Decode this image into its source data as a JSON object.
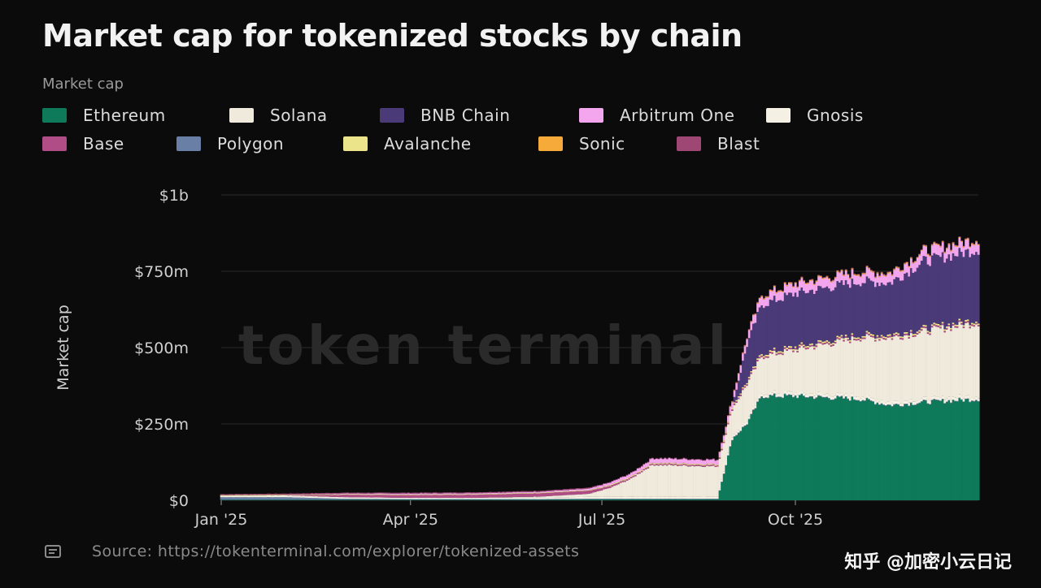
{
  "title": "Market cap for tokenized stocks by chain",
  "legend_title": "Market cap",
  "legend_rows": [
    [
      {
        "label": "Ethereum",
        "color": "#0e7a5a"
      },
      {
        "label": "Solana",
        "color": "#efeadb"
      },
      {
        "label": "BNB Chain",
        "color": "#4b3a78"
      },
      {
        "label": "Arbitrum One",
        "color": "#f3a6ee"
      },
      {
        "label": "Gnosis",
        "color": "#f4f1e4"
      }
    ],
    [
      {
        "label": "Base",
        "color": "#b04d86"
      },
      {
        "label": "Polygon",
        "color": "#6a7fa6"
      },
      {
        "label": "Avalanche",
        "color": "#ece48a"
      },
      {
        "label": "Sonic",
        "color": "#f5aa3a"
      },
      {
        "label": "Blast",
        "color": "#9e4775"
      }
    ]
  ],
  "watermark": "token terminal",
  "source_text": "Source: https://tokenterminal.com/explorer/tokenized-assets",
  "footer_overlay": "知乎 @加密小云日记",
  "chart_data": {
    "type": "bar",
    "stacked": true,
    "ylabel": "Market cap",
    "ylim": [
      0,
      1000000000
    ],
    "y_ticks": [
      {
        "value": 0,
        "label": "$0"
      },
      {
        "value": 250000000,
        "label": "$250m"
      },
      {
        "value": 500000000,
        "label": "$500m"
      },
      {
        "value": 750000000,
        "label": "$750m"
      },
      {
        "value": 1000000000,
        "label": "$1b"
      }
    ],
    "x_range": [
      "2025-01-01",
      "2025-12-27"
    ],
    "x_ticks": [
      {
        "date": "2025-01-01",
        "label": "Jan '25"
      },
      {
        "date": "2025-04-01",
        "label": "Apr '25"
      },
      {
        "date": "2025-07-01",
        "label": "Jul '25"
      },
      {
        "date": "2025-10-01",
        "label": "Oct '25"
      }
    ],
    "grid": true,
    "legend_position": "top",
    "series_colors": {
      "Ethereum": "#0e7a5a",
      "Solana": "#efeadb",
      "BNB Chain": "#4b3a78",
      "Arbitrum One": "#f3a6ee",
      "Gnosis": "#f4f1e4",
      "Base": "#b04d86",
      "Polygon": "#6a7fa6",
      "Avalanche": "#ece48a",
      "Sonic": "#f5aa3a",
      "Blast": "#9e4775"
    },
    "keypoints": [
      {
        "date": "2025-01-01",
        "Ethereum": 2,
        "Solana": 0,
        "BNB Chain": 0,
        "Arbitrum One": 0,
        "Gnosis": 5,
        "Base": 0,
        "Polygon": 8,
        "Avalanche": 2,
        "Sonic": 0,
        "Blast": 3
      },
      {
        "date": "2025-02-01",
        "Ethereum": 2,
        "Solana": 0,
        "BNB Chain": 0,
        "Arbitrum One": 0,
        "Gnosis": 6,
        "Base": 0,
        "Polygon": 8,
        "Avalanche": 2,
        "Sonic": 0,
        "Blast": 4
      },
      {
        "date": "2025-03-01",
        "Ethereum": 2,
        "Solana": 0,
        "BNB Chain": 0,
        "Arbitrum One": 2,
        "Gnosis": 5,
        "Base": 8,
        "Polygon": 3,
        "Avalanche": 2,
        "Sonic": 0,
        "Blast": 3
      },
      {
        "date": "2025-04-01",
        "Ethereum": 2,
        "Solana": 0,
        "BNB Chain": 0,
        "Arbitrum One": 3,
        "Gnosis": 4,
        "Base": 9,
        "Polygon": 2,
        "Avalanche": 2,
        "Sonic": 0,
        "Blast": 3
      },
      {
        "date": "2025-05-01",
        "Ethereum": 2,
        "Solana": 0,
        "BNB Chain": 0,
        "Arbitrum One": 3,
        "Gnosis": 4,
        "Base": 10,
        "Polygon": 2,
        "Avalanche": 2,
        "Sonic": 0,
        "Blast": 3
      },
      {
        "date": "2025-06-01",
        "Ethereum": 2,
        "Solana": 3,
        "BNB Chain": 0,
        "Arbitrum One": 3,
        "Gnosis": 5,
        "Base": 11,
        "Polygon": 2,
        "Avalanche": 2,
        "Sonic": 0,
        "Blast": 3
      },
      {
        "date": "2025-06-25",
        "Ethereum": 3,
        "Solana": 10,
        "BNB Chain": 0,
        "Arbitrum One": 5,
        "Gnosis": 6,
        "Base": 10,
        "Polygon": 2,
        "Avalanche": 2,
        "Sonic": 0,
        "Blast": 3
      },
      {
        "date": "2025-07-05",
        "Ethereum": 3,
        "Solana": 30,
        "BNB Chain": 0,
        "Arbitrum One": 8,
        "Gnosis": 6,
        "Base": 6,
        "Polygon": 2,
        "Avalanche": 3,
        "Sonic": 0,
        "Blast": 2
      },
      {
        "date": "2025-07-15",
        "Ethereum": 3,
        "Solana": 60,
        "BNB Chain": 0,
        "Arbitrum One": 10,
        "Gnosis": 6,
        "Base": 4,
        "Polygon": 2,
        "Avalanche": 3,
        "Sonic": 0,
        "Blast": 2
      },
      {
        "date": "2025-07-25",
        "Ethereum": 3,
        "Solana": 105,
        "BNB Chain": 0,
        "Arbitrum One": 14,
        "Gnosis": 6,
        "Base": 4,
        "Polygon": 2,
        "Avalanche": 3,
        "Sonic": 0,
        "Blast": 2
      },
      {
        "date": "2025-08-25",
        "Ethereum": 3,
        "Solana": 100,
        "BNB Chain": 0,
        "Arbitrum One": 14,
        "Gnosis": 6,
        "Base": 4,
        "Polygon": 2,
        "Avalanche": 3,
        "Sonic": 0,
        "Blast": 2
      },
      {
        "date": "2025-09-01",
        "Ethereum": 200,
        "Solana": 90,
        "BNB Chain": 0,
        "Arbitrum One": 20,
        "Gnosis": 8,
        "Base": 5,
        "Polygon": 2,
        "Avalanche": 4,
        "Sonic": 2,
        "Blast": 2
      },
      {
        "date": "2025-09-08",
        "Ethereum": 250,
        "Solana": 120,
        "BNB Chain": 120,
        "Arbitrum One": 25,
        "Gnosis": 8,
        "Base": 5,
        "Polygon": 2,
        "Avalanche": 4,
        "Sonic": 2,
        "Blast": 2
      },
      {
        "date": "2025-09-15",
        "Ethereum": 340,
        "Solana": 120,
        "BNB Chain": 160,
        "Arbitrum One": 28,
        "Gnosis": 9,
        "Base": 5,
        "Polygon": 2,
        "Avalanche": 5,
        "Sonic": 3,
        "Blast": 2
      },
      {
        "date": "2025-10-01",
        "Ethereum": 340,
        "Solana": 140,
        "BNB Chain": 175,
        "Arbitrum One": 30,
        "Gnosis": 10,
        "Base": 5,
        "Polygon": 2,
        "Avalanche": 5,
        "Sonic": 3,
        "Blast": 2
      },
      {
        "date": "2025-11-01",
        "Ethereum": 330,
        "Solana": 190,
        "BNB Chain": 175,
        "Arbitrum One": 30,
        "Gnosis": 10,
        "Base": 5,
        "Polygon": 2,
        "Avalanche": 5,
        "Sonic": 3,
        "Blast": 2
      },
      {
        "date": "2025-11-15",
        "Ethereum": 310,
        "Solana": 210,
        "BNB Chain": 170,
        "Arbitrum One": 30,
        "Gnosis": 10,
        "Base": 5,
        "Polygon": 2,
        "Avalanche": 5,
        "Sonic": 3,
        "Blast": 2
      },
      {
        "date": "2025-12-01",
        "Ethereum": 320,
        "Solana": 220,
        "BNB Chain": 220,
        "Arbitrum One": 32,
        "Gnosis": 10,
        "Base": 5,
        "Polygon": 2,
        "Avalanche": 5,
        "Sonic": 3,
        "Blast": 2
      },
      {
        "date": "2025-12-27",
        "Ethereum": 330,
        "Solana": 240,
        "BNB Chain": 230,
        "Arbitrum One": 32,
        "Gnosis": 10,
        "Base": 5,
        "Polygon": 2,
        "Avalanche": 5,
        "Sonic": 3,
        "Blast": 2
      }
    ],
    "value_unit_note": "keypoint values in $m"
  }
}
